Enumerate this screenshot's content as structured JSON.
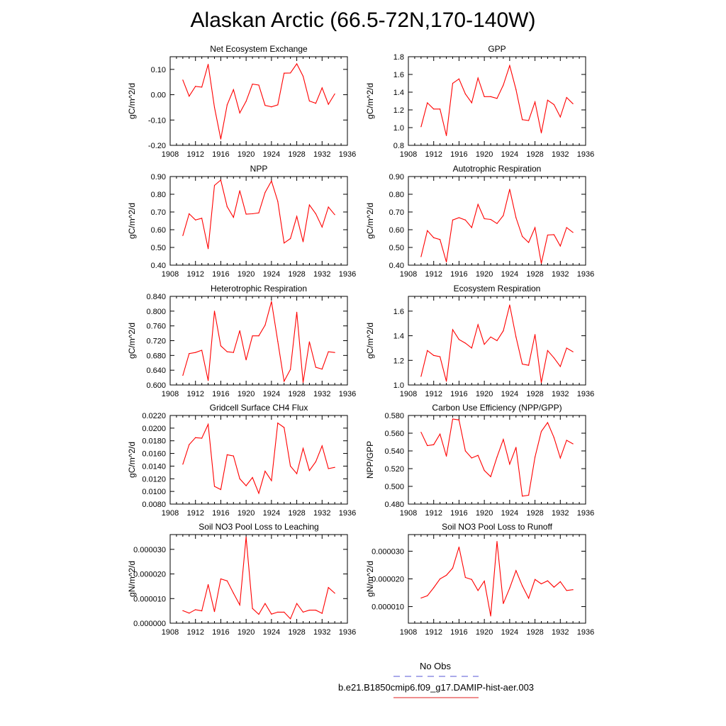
{
  "title": "Alaskan Arctic (66.5-72N,170-140W)",
  "legend": {
    "obs_label": "No Obs",
    "obs_color": "#7777dd",
    "model_label": "b.e21.B1850cmip6.f09_g17.DAMIP-hist-aer.003",
    "model_color": "#e64b4b"
  },
  "line_color": "#ff0000",
  "chart_data": [
    {
      "type": "line",
      "title": "Net Ecosystem Exchange",
      "ylabel": "gC/m^2/d",
      "xlim": [
        1908,
        1936
      ],
      "ylim": [
        -0.2,
        0.15
      ],
      "xticks": [
        "1908",
        "1912",
        "1916",
        "1920",
        "1924",
        "1928",
        "1932",
        "1936"
      ],
      "yticks": [
        {
          "v": -0.2,
          "t": "-0.20"
        },
        {
          "v": -0.1,
          "t": "-0.10"
        },
        {
          "v": 0.0,
          "t": "0.00"
        },
        {
          "v": 0.1,
          "t": "0.10"
        }
      ],
      "x": [
        1910,
        1911,
        1912,
        1913,
        1914,
        1915,
        1916,
        1917,
        1918,
        1919,
        1920,
        1921,
        1922,
        1923,
        1924,
        1925,
        1926,
        1927,
        1928,
        1929,
        1930,
        1931,
        1932,
        1933,
        1934
      ],
      "values": [
        0.058,
        -0.006,
        0.033,
        0.03,
        0.12,
        -0.05,
        -0.175,
        -0.04,
        0.02,
        -0.072,
        -0.026,
        0.042,
        0.038,
        -0.042,
        -0.048,
        -0.04,
        0.085,
        0.086,
        0.122,
        0.073,
        -0.025,
        -0.034,
        0.027,
        -0.038,
        0.003
      ]
    },
    {
      "type": "line",
      "title": "GPP",
      "ylabel": "gC/m^2/d",
      "xlim": [
        1908,
        1936
      ],
      "ylim": [
        0.8,
        1.8
      ],
      "xticks": [
        "1908",
        "1912",
        "1916",
        "1920",
        "1924",
        "1928",
        "1932",
        "1936"
      ],
      "yticks": [
        {
          "v": 0.8,
          "t": "0.8"
        },
        {
          "v": 1.0,
          "t": "1.0"
        },
        {
          "v": 1.2,
          "t": "1.2"
        },
        {
          "v": 1.4,
          "t": "1.4"
        },
        {
          "v": 1.6,
          "t": "1.6"
        },
        {
          "v": 1.8,
          "t": "1.8"
        }
      ],
      "x": [
        1910,
        1911,
        1912,
        1913,
        1914,
        1915,
        1916,
        1917,
        1918,
        1919,
        1920,
        1921,
        1922,
        1923,
        1924,
        1925,
        1926,
        1927,
        1928,
        1929,
        1930,
        1931,
        1932,
        1933,
        1934
      ],
      "values": [
        1.01,
        1.28,
        1.21,
        1.21,
        0.91,
        1.5,
        1.55,
        1.38,
        1.28,
        1.56,
        1.35,
        1.35,
        1.33,
        1.48,
        1.7,
        1.43,
        1.09,
        1.08,
        1.29,
        0.94,
        1.31,
        1.26,
        1.12,
        1.34,
        1.27
      ]
    },
    {
      "type": "line",
      "title": "NPP",
      "ylabel": "gC/m^2/d",
      "xlim": [
        1908,
        1936
      ],
      "ylim": [
        0.4,
        0.9
      ],
      "xticks": [
        "1908",
        "1912",
        "1916",
        "1920",
        "1924",
        "1928",
        "1932",
        "1936"
      ],
      "yticks": [
        {
          "v": 0.4,
          "t": "0.40"
        },
        {
          "v": 0.5,
          "t": "0.50"
        },
        {
          "v": 0.6,
          "t": "0.60"
        },
        {
          "v": 0.7,
          "t": "0.70"
        },
        {
          "v": 0.8,
          "t": "0.80"
        },
        {
          "v": 0.9,
          "t": "0.90"
        }
      ],
      "x": [
        1910,
        1911,
        1912,
        1913,
        1914,
        1915,
        1916,
        1917,
        1918,
        1919,
        1920,
        1921,
        1922,
        1923,
        1924,
        1925,
        1926,
        1927,
        1928,
        1929,
        1930,
        1931,
        1932,
        1933,
        1934
      ],
      "values": [
        0.567,
        0.69,
        0.655,
        0.665,
        0.493,
        0.85,
        0.88,
        0.73,
        0.67,
        0.82,
        0.688,
        0.69,
        0.695,
        0.81,
        0.875,
        0.76,
        0.525,
        0.55,
        0.675,
        0.532,
        0.74,
        0.69,
        0.615,
        0.728,
        0.685
      ]
    },
    {
      "type": "line",
      "title": "Autotrophic Respiration",
      "ylabel": "gC/m^2/d",
      "xlim": [
        1908,
        1936
      ],
      "ylim": [
        0.4,
        0.9
      ],
      "xticks": [
        "1908",
        "1912",
        "1916",
        "1920",
        "1924",
        "1928",
        "1932",
        "1936"
      ],
      "yticks": [
        {
          "v": 0.4,
          "t": "0.40"
        },
        {
          "v": 0.5,
          "t": "0.50"
        },
        {
          "v": 0.6,
          "t": "0.60"
        },
        {
          "v": 0.7,
          "t": "0.70"
        },
        {
          "v": 0.8,
          "t": "0.80"
        },
        {
          "v": 0.9,
          "t": "0.90"
        }
      ],
      "x": [
        1910,
        1911,
        1912,
        1913,
        1914,
        1915,
        1916,
        1917,
        1918,
        1919,
        1920,
        1921,
        1922,
        1923,
        1924,
        1925,
        1926,
        1927,
        1928,
        1929,
        1930,
        1931,
        1932,
        1933,
        1934
      ],
      "values": [
        0.448,
        0.595,
        0.555,
        0.545,
        0.418,
        0.655,
        0.668,
        0.655,
        0.612,
        0.743,
        0.662,
        0.658,
        0.635,
        0.68,
        0.828,
        0.668,
        0.562,
        0.528,
        0.612,
        0.41,
        0.57,
        0.572,
        0.508,
        0.612,
        0.585
      ]
    },
    {
      "type": "line",
      "title": "Heterotrophic Respiration",
      "ylabel": "gC/m^2/d",
      "xlim": [
        1908,
        1936
      ],
      "ylim": [
        0.6,
        0.84
      ],
      "xticks": [
        "1908",
        "1912",
        "1916",
        "1920",
        "1924",
        "1928",
        "1932",
        "1936"
      ],
      "yticks": [
        {
          "v": 0.6,
          "t": "0.600"
        },
        {
          "v": 0.64,
          "t": "0.640"
        },
        {
          "v": 0.68,
          "t": "0.680"
        },
        {
          "v": 0.72,
          "t": "0.720"
        },
        {
          "v": 0.76,
          "t": "0.760"
        },
        {
          "v": 0.8,
          "t": "0.800"
        },
        {
          "v": 0.84,
          "t": "0.840"
        }
      ],
      "x": [
        1910,
        1911,
        1912,
        1913,
        1914,
        1915,
        1916,
        1917,
        1918,
        1919,
        1920,
        1921,
        1922,
        1923,
        1924,
        1925,
        1926,
        1927,
        1928,
        1929,
        1930,
        1931,
        1932,
        1933,
        1934
      ],
      "values": [
        0.626,
        0.685,
        0.688,
        0.694,
        0.612,
        0.8,
        0.706,
        0.69,
        0.688,
        0.747,
        0.668,
        0.733,
        0.733,
        0.762,
        0.826,
        0.718,
        0.61,
        0.642,
        0.797,
        0.607,
        0.717,
        0.648,
        0.643,
        0.69,
        0.688
      ]
    },
    {
      "type": "line",
      "title": "Ecosystem Respiration",
      "ylabel": "gC/m^2/d",
      "xlim": [
        1908,
        1936
      ],
      "ylim": [
        1.0,
        1.72
      ],
      "xticks": [
        "1908",
        "1912",
        "1916",
        "1920",
        "1924",
        "1928",
        "1932",
        "1936"
      ],
      "yticks": [
        {
          "v": 1.0,
          "t": "1.0"
        },
        {
          "v": 1.2,
          "t": "1.2"
        },
        {
          "v": 1.4,
          "t": "1.4"
        },
        {
          "v": 1.6,
          "t": "1.6"
        }
      ],
      "x": [
        1910,
        1911,
        1912,
        1913,
        1914,
        1915,
        1916,
        1917,
        1918,
        1919,
        1920,
        1921,
        1922,
        1923,
        1924,
        1925,
        1926,
        1927,
        1928,
        1929,
        1930,
        1931,
        1932,
        1933,
        1934
      ],
      "values": [
        1.07,
        1.28,
        1.24,
        1.23,
        1.03,
        1.45,
        1.37,
        1.34,
        1.3,
        1.49,
        1.33,
        1.39,
        1.36,
        1.44,
        1.65,
        1.39,
        1.17,
        1.16,
        1.41,
        1.02,
        1.28,
        1.22,
        1.15,
        1.3,
        1.27
      ]
    },
    {
      "type": "line",
      "title": "Gridcell Surface CH4 Flux",
      "ylabel": "gC/m^2/d",
      "xlim": [
        1908,
        1936
      ],
      "ylim": [
        0.008,
        0.022
      ],
      "xticks": [
        "1908",
        "1912",
        "1916",
        "1920",
        "1924",
        "1928",
        "1932",
        "1936"
      ],
      "yticks": [
        {
          "v": 0.008,
          "t": "0.0080"
        },
        {
          "v": 0.01,
          "t": "0.0100"
        },
        {
          "v": 0.012,
          "t": "0.0120"
        },
        {
          "v": 0.014,
          "t": "0.0140"
        },
        {
          "v": 0.016,
          "t": "0.0160"
        },
        {
          "v": 0.018,
          "t": "0.0180"
        },
        {
          "v": 0.02,
          "t": "0.0200"
        },
        {
          "v": 0.022,
          "t": "0.0220"
        }
      ],
      "x": [
        1910,
        1911,
        1912,
        1913,
        1914,
        1915,
        1916,
        1917,
        1918,
        1919,
        1920,
        1921,
        1922,
        1923,
        1924,
        1925,
        1926,
        1927,
        1928,
        1929,
        1930,
        1931,
        1932,
        1933,
        1934
      ],
      "values": [
        0.0143,
        0.0174,
        0.0185,
        0.0184,
        0.0206,
        0.0108,
        0.0103,
        0.0158,
        0.0156,
        0.012,
        0.0109,
        0.0122,
        0.0097,
        0.0132,
        0.0117,
        0.0208,
        0.0201,
        0.014,
        0.0128,
        0.0168,
        0.0133,
        0.0147,
        0.0172,
        0.0136,
        0.0138
      ]
    },
    {
      "type": "line",
      "title": "Carbon Use Efficiency (NPP/GPP)",
      "ylabel": "NPP/GPP",
      "xlim": [
        1908,
        1936
      ],
      "ylim": [
        0.48,
        0.58
      ],
      "xticks": [
        "1908",
        "1912",
        "1916",
        "1920",
        "1924",
        "1928",
        "1932",
        "1936"
      ],
      "yticks": [
        {
          "v": 0.48,
          "t": "0.480"
        },
        {
          "v": 0.5,
          "t": "0.500"
        },
        {
          "v": 0.52,
          "t": "0.520"
        },
        {
          "v": 0.54,
          "t": "0.540"
        },
        {
          "v": 0.56,
          "t": "0.560"
        },
        {
          "v": 0.58,
          "t": "0.580"
        }
      ],
      "x": [
        1910,
        1911,
        1912,
        1913,
        1914,
        1915,
        1916,
        1917,
        1918,
        1919,
        1920,
        1921,
        1922,
        1923,
        1924,
        1925,
        1926,
        1927,
        1928,
        1929,
        1930,
        1931,
        1932,
        1933,
        1934
      ],
      "values": [
        0.561,
        0.546,
        0.547,
        0.559,
        0.534,
        0.576,
        0.575,
        0.54,
        0.532,
        0.535,
        0.518,
        0.511,
        0.533,
        0.553,
        0.525,
        0.544,
        0.489,
        0.49,
        0.533,
        0.562,
        0.572,
        0.555,
        0.532,
        0.552,
        0.548
      ]
    },
    {
      "type": "line",
      "title": "Soil NO3 Pool Loss to Leaching",
      "ylabel": "gN/m^2/d",
      "xlim": [
        1908,
        1936
      ],
      "ylim": [
        0.0,
        3.6e-05
      ],
      "xticks": [
        "1908",
        "1912",
        "1916",
        "1920",
        "1924",
        "1928",
        "1932",
        "1936"
      ],
      "yticks": [
        {
          "v": 0.0,
          "t": "0.000000"
        },
        {
          "v": 1e-05,
          "t": "0.000010"
        },
        {
          "v": 2e-05,
          "t": "0.000020"
        },
        {
          "v": 3e-05,
          "t": "0.000030"
        }
      ],
      "x": [
        1910,
        1911,
        1912,
        1913,
        1914,
        1915,
        1916,
        1917,
        1918,
        1919,
        1920,
        1921,
        1922,
        1923,
        1924,
        1925,
        1926,
        1927,
        1928,
        1929,
        1930,
        1931,
        1932,
        1933,
        1934
      ],
      "values": [
        5.1e-06,
        4.1e-06,
        5.5e-06,
        5e-06,
        1.57e-05,
        4.7e-06,
        1.8e-05,
        1.72e-05,
        1.22e-05,
        7.4e-06,
        3.5e-05,
        6e-06,
        3.6e-06,
        8e-06,
        3.7e-06,
        4.5e-06,
        4.5e-06,
        1.8e-06,
        8e-06,
        4.5e-06,
        5.3e-06,
        5.3e-06,
        4e-06,
        1.45e-05,
        1.22e-05
      ]
    },
    {
      "type": "line",
      "title": "Soil NO3 Pool Loss to Runoff",
      "ylabel": "gN/m^2/d",
      "xlim": [
        1908,
        1936
      ],
      "ylim": [
        4e-06,
        3.6e-05
      ],
      "xticks": [
        "1908",
        "1912",
        "1916",
        "1920",
        "1924",
        "1928",
        "1932",
        "1936"
      ],
      "yticks": [
        {
          "v": 1e-05,
          "t": "0.000010"
        },
        {
          "v": 2e-05,
          "t": "0.000020"
        },
        {
          "v": 3e-05,
          "t": "0.000030"
        }
      ],
      "x": [
        1910,
        1911,
        1912,
        1913,
        1914,
        1915,
        1916,
        1917,
        1918,
        1919,
        1920,
        1921,
        1922,
        1923,
        1924,
        1925,
        1926,
        1927,
        1928,
        1929,
        1930,
        1931,
        1932,
        1933,
        1934
      ],
      "values": [
        1.31e-05,
        1.39e-05,
        1.68e-05,
        2e-05,
        2.13e-05,
        2.39e-05,
        3.15e-05,
        2.05e-05,
        1.98e-05,
        1.58e-05,
        1.92e-05,
        6.6e-06,
        3.35e-05,
        1.11e-05,
        1.67e-05,
        2.3e-05,
        1.75e-05,
        1.3e-05,
        1.98e-05,
        1.82e-05,
        1.93e-05,
        1.7e-05,
        1.9e-05,
        1.58e-05,
        1.61e-05
      ]
    }
  ]
}
